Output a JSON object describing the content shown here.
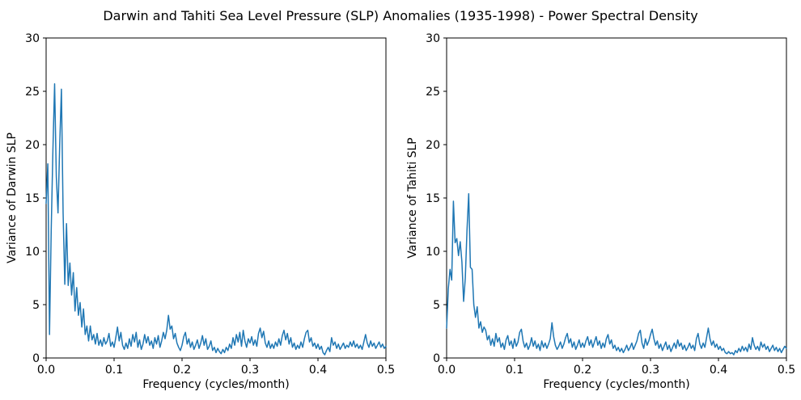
{
  "figure": {
    "title": "Darwin and Tahiti Sea Level Pressure (SLP) Anomalies (1935-1998) - Power Spectral Density",
    "background": "#ffffff",
    "line_color": "#1f77b4",
    "axes_color": "#000000"
  },
  "chart_data": [
    {
      "type": "line",
      "title": "",
      "xlabel": "Frequency (cycles/month)",
      "ylabel": "Variance of Darwin SLP",
      "xlim": [
        0.0,
        0.5
      ],
      "ylim": [
        0,
        30
      ],
      "grid": false,
      "legend": "none",
      "xticks": {
        "values": [
          0.0,
          0.1,
          0.2,
          0.3,
          0.4,
          0.5
        ],
        "labels": [
          "0.0",
          "0.1",
          "0.2",
          "0.3",
          "0.4",
          "0.5"
        ]
      },
      "yticks": {
        "values": [
          0,
          5,
          10,
          15,
          20,
          25,
          30
        ],
        "labels": [
          "0",
          "5",
          "10",
          "15",
          "20",
          "25",
          "30"
        ]
      },
      "series": [
        {
          "name": "darwin-psd",
          "color": "#1f77b4",
          "x0": 0.0,
          "dx": 0.0025,
          "values": [
            14.5,
            18.2,
            2.2,
            12.0,
            19.5,
            25.7,
            17.0,
            13.6,
            20.0,
            25.2,
            13.6,
            6.9,
            12.6,
            6.8,
            8.9,
            5.9,
            8.0,
            4.4,
            6.6,
            4.0,
            5.2,
            2.9,
            4.6,
            2.2,
            3.0,
            1.6,
            3.0,
            1.7,
            2.2,
            1.3,
            2.3,
            1.2,
            1.7,
            1.1,
            1.9,
            1.3,
            1.6,
            2.3,
            1.1,
            1.5,
            1.0,
            1.9,
            2.9,
            1.6,
            2.4,
            1.2,
            0.8,
            1.4,
            0.9,
            1.8,
            1.1,
            2.2,
            1.5,
            2.4,
            1.0,
            1.7,
            0.8,
            1.3,
            2.2,
            1.4,
            2.0,
            1.2,
            1.6,
            0.9,
            1.9,
            1.3,
            2.1,
            1.0,
            1.6,
            2.4,
            1.8,
            2.6,
            4.0,
            2.7,
            3.0,
            1.8,
            2.3,
            1.4,
            1.0,
            0.7,
            1.2,
            2.0,
            2.4,
            1.3,
            1.8,
            1.0,
            1.5,
            0.8,
            1.2,
            1.7,
            0.9,
            1.4,
            2.1,
            1.2,
            1.8,
            0.8,
            1.1,
            1.6,
            0.7,
            1.0,
            0.5,
            0.9,
            0.6,
            0.4,
            0.8,
            0.5,
            1.0,
            0.7,
            1.3,
            0.9,
            1.9,
            1.2,
            2.2,
            1.5,
            2.4,
            1.1,
            2.6,
            1.6,
            1.0,
            1.8,
            1.4,
            2.0,
            1.2,
            1.7,
            1.1,
            2.3,
            2.8,
            1.9,
            2.5,
            1.4,
            1.0,
            1.6,
            0.9,
            1.3,
            0.9,
            1.5,
            1.1,
            1.8,
            1.2,
            2.1,
            2.6,
            1.7,
            2.3,
            1.3,
            1.9,
            1.0,
            1.4,
            0.8,
            1.2,
            0.9,
            1.5,
            1.0,
            1.8,
            2.4,
            2.6,
            1.5,
            1.9,
            1.1,
            1.4,
            0.9,
            1.3,
            0.8,
            1.1,
            0.5,
            0.3,
            0.7,
            1.0,
            0.6,
            1.9,
            1.2,
            1.5,
            0.9,
            1.3,
            0.8,
            1.1,
            1.4,
            0.9,
            1.2,
            1.0,
            1.5,
            1.1,
            1.6,
            1.0,
            1.3,
            0.9,
            1.2,
            0.8,
            1.5,
            2.2,
            1.4,
            1.0,
            1.6,
            1.1,
            1.4,
            0.9,
            1.2,
            1.5,
            1.0,
            1.3,
            0.9,
            1.1
          ]
        }
      ]
    },
    {
      "type": "line",
      "title": "",
      "xlabel": "Frequency (cycles/month)",
      "ylabel": "Variance of Tahiti SLP",
      "xlim": [
        0.0,
        0.5
      ],
      "ylim": [
        0,
        30
      ],
      "grid": false,
      "legend": "none",
      "xticks": {
        "values": [
          0.0,
          0.1,
          0.2,
          0.3,
          0.4,
          0.5
        ],
        "labels": [
          "0.0",
          "0.1",
          "0.2",
          "0.3",
          "0.4",
          "0.5"
        ]
      },
      "yticks": {
        "values": [
          0,
          5,
          10,
          15,
          20,
          25,
          30
        ],
        "labels": [
          "0",
          "5",
          "10",
          "15",
          "20",
          "25",
          "30"
        ]
      },
      "series": [
        {
          "name": "tahiti-psd",
          "color": "#1f77b4",
          "x0": 0.0,
          "dx": 0.0025,
          "values": [
            2.8,
            6.5,
            8.3,
            7.3,
            14.7,
            10.8,
            11.2,
            9.6,
            10.9,
            9.0,
            5.3,
            7.5,
            12.0,
            15.4,
            8.5,
            8.3,
            5.0,
            3.8,
            4.8,
            2.8,
            3.4,
            2.4,
            2.9,
            2.6,
            1.7,
            2.1,
            1.2,
            1.8,
            1.1,
            2.3,
            1.5,
            1.9,
            1.0,
            1.4,
            0.8,
            1.7,
            2.1,
            1.2,
            1.6,
            0.9,
            1.8,
            1.1,
            1.5,
            2.4,
            2.7,
            1.6,
            1.0,
            1.4,
            0.8,
            1.2,
            1.9,
            1.1,
            1.6,
            0.9,
            1.3,
            0.7,
            1.6,
            1.0,
            1.4,
            0.9,
            1.3,
            1.8,
            3.3,
            2.0,
            1.2,
            0.8,
            1.1,
            1.5,
            0.9,
            1.3,
            1.9,
            2.3,
            1.4,
            1.8,
            1.0,
            1.5,
            0.8,
            1.2,
            1.7,
            1.0,
            1.4,
            1.0,
            1.6,
            2.0,
            1.2,
            1.7,
            1.0,
            1.5,
            2.0,
            1.2,
            1.6,
            0.9,
            1.4,
            1.0,
            1.8,
            2.2,
            1.3,
            1.7,
            0.9,
            1.2,
            0.7,
            1.0,
            0.6,
            0.9,
            0.5,
            0.8,
            1.2,
            0.7,
            1.0,
            1.4,
            0.8,
            1.2,
            1.6,
            2.3,
            2.6,
            1.4,
            0.9,
            1.8,
            1.2,
            1.6,
            2.2,
            2.7,
            1.8,
            1.2,
            1.6,
            0.9,
            1.3,
            0.7,
            1.1,
            1.5,
            0.8,
            1.2,
            0.6,
            1.0,
            1.4,
            0.9,
            1.7,
            1.1,
            1.4,
            0.8,
            1.2,
            0.7,
            1.0,
            1.4,
            0.9,
            1.2,
            0.7,
            1.8,
            2.3,
            1.3,
            0.9,
            1.4,
            1.0,
            1.9,
            2.8,
            1.8,
            1.2,
            1.6,
            1.0,
            1.3,
            0.8,
            1.1,
            0.7,
            0.9,
            0.5,
            0.4,
            0.6,
            0.4,
            0.5,
            0.3,
            0.7,
            0.5,
            0.9,
            0.6,
            1.1,
            0.7,
            1.0,
            0.6,
            1.3,
            0.8,
            1.9,
            1.2,
            0.8,
            1.1,
            0.7,
            1.5,
            1.0,
            1.3,
            0.8,
            1.1,
            0.6,
            0.9,
            1.2,
            0.7,
            1.0,
            0.6,
            0.9,
            0.5,
            0.8,
            1.1,
            0.9
          ]
        }
      ]
    }
  ]
}
